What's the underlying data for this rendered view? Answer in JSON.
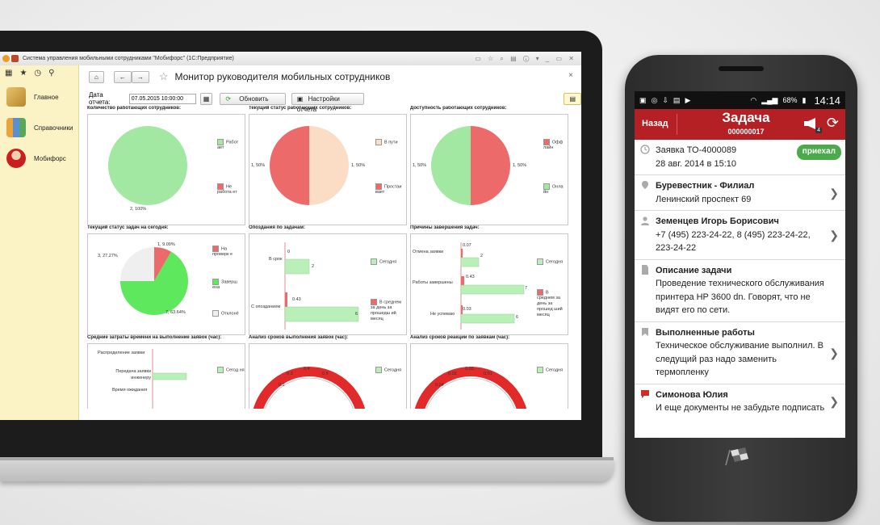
{
  "app": {
    "window_title": "Система управления мобильными сотрудниками \"Мобифорс\"  (1С:Предприятие)",
    "page_title": "Монитор руководителя мобильных сотрудников",
    "report_date_label": "Дата отчета:",
    "report_date_value": "07.05.2015 10:00:00",
    "refresh_button": "Обновить",
    "settings_button": "Настройки отчета"
  },
  "sidebar": {
    "items": [
      {
        "label": "Главное",
        "icon": "home-desk-icon"
      },
      {
        "label": "Справочники",
        "icon": "books-icon"
      },
      {
        "label": "Мобифорс",
        "icon": "worker-icon"
      }
    ]
  },
  "panels": {
    "p1": {
      "title": "Количество работающих сотрудников:",
      "pie_label": "2, 100%",
      "legend": [
        "Работ ает",
        "Не работа ет"
      ]
    },
    "p2": {
      "title": "Текущий статус работающих сотрудников:",
      "label_left": "1, 50%",
      "label_right": "1, 50%",
      "legend": [
        "В пути",
        "Простаи вает"
      ]
    },
    "p3": {
      "title": "Доступность работающих сотрудников:",
      "label_left": "1, 50%",
      "label_right": "1, 50%",
      "legend": [
        "Офф лайн",
        "Онла йн"
      ]
    },
    "p4": {
      "title": "Текущий статус задач на сегодня:",
      "labels": [
        "1, 9.09%",
        "3, 27.27%",
        "7, 63.64%"
      ],
      "legend": [
        "На проверк е",
        "Заверш ена",
        "Отклонё"
      ]
    },
    "p5": {
      "title": "Опоздания по задачам:",
      "cats": [
        "В срок",
        "С опозданием"
      ],
      "v_red": [
        "0",
        "0.43"
      ],
      "v_green": [
        "2",
        "6"
      ],
      "legend": [
        "Сегодня",
        "В среднем за день за прошедш ий месяц"
      ]
    },
    "p6": {
      "title": "Причины завершения задач:",
      "cats": [
        "Отмена заявки",
        "Работы завершены",
        "Не успеваю"
      ],
      "v_red": [
        "0.07",
        "0.43",
        "0.03"
      ],
      "v_green": [
        "2",
        "7",
        "6"
      ],
      "legend": [
        "Сегодня",
        "В среднем за день за прошед ший месяц"
      ]
    },
    "p7": {
      "title": "Средние затраты времени на выполнение заявок (час):",
      "cats": [
        "Распределение заявки",
        "Передача заявки инженеру",
        "Время ожидания"
      ],
      "legend": [
        "Сегод ня"
      ]
    },
    "p8": {
      "title": "Анализ сроков выполнения заявок (час):",
      "ticks": [
        "0.3",
        "0.4",
        "0.5",
        "0.2"
      ],
      "legend": [
        "Сегодня"
      ]
    },
    "p9": {
      "title": "Анализ сроков реакции по заявкам (час):",
      "ticks": [
        "0.02",
        "0.03",
        "0.01",
        "0.04"
      ],
      "legend": [
        "Сегодня"
      ]
    }
  },
  "phone": {
    "battery": "68%",
    "time": "14:14",
    "back": "Назад",
    "title": "Задача",
    "subtitle": "000000017",
    "badge": "4",
    "rows": [
      {
        "icon": "clock-icon",
        "l1": "Заявка ТО-4000089",
        "l2": "28 авг. 2014 в 15:10",
        "pill": "приехал"
      },
      {
        "icon": "location-pin-icon",
        "l1": "Буревестник - Филиал",
        "l2": "Ленинский проспект 69"
      },
      {
        "icon": "person-icon",
        "l1": "Земенцев Игорь Борисович",
        "l2": "+7 (495) 223-24-22, 8 (495) 223-24-22, 223-24-22"
      },
      {
        "icon": "document-icon",
        "l1": "Описание задачи",
        "l2": "Проведение технического обслуживания принтера HP 3600 dn. Говорят, что не видят его по сети."
      },
      {
        "icon": "bookmark-icon",
        "l1": "Выполненные работы",
        "l2": "Техническое обслуживание выполнил. В следущий раз надо заменить термопленку"
      },
      {
        "icon": "chat-icon",
        "l1": "Симонова Юлия",
        "l2": "И еще документы не забудьте подписать"
      }
    ]
  },
  "colors": {
    "green": "#a2e8a2",
    "red": "#ec6a6a",
    "peach": "#fbdcc4",
    "brand": "#b42023",
    "pill": "#4bab4b"
  }
}
